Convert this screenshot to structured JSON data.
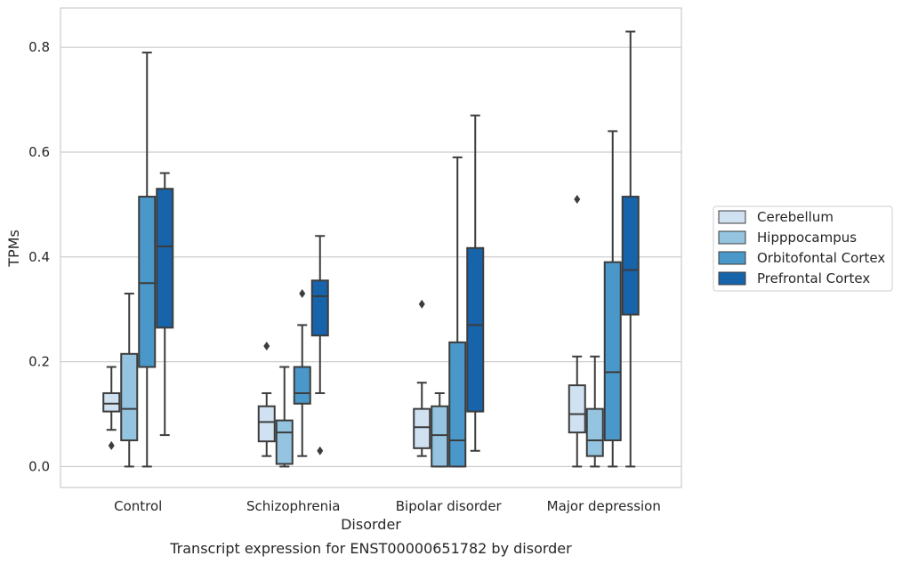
{
  "caption": "Transcript expression for ENST00000651782 by disorder",
  "chart_data": {
    "type": "boxplot",
    "xlabel": "Disorder",
    "ylabel": "TPMs",
    "ylim": [
      -0.04,
      0.875
    ],
    "yticks": [
      0.0,
      0.2,
      0.4,
      0.6,
      0.8
    ],
    "ytick_labels": [
      "0.0",
      "0.2",
      "0.4",
      "0.6",
      "0.8"
    ],
    "grid": "horizontal",
    "legend_position": "right",
    "categories": [
      "Control",
      "Schizophrenia",
      "Bipolar disorder",
      "Major depression"
    ],
    "series": [
      {
        "name": "Cerebellum",
        "color": "#d0e1f2",
        "boxes": [
          {
            "min": 0.07,
            "q1": 0.105,
            "median": 0.12,
            "q3": 0.14,
            "max": 0.19,
            "outliers": [
              0.04
            ]
          },
          {
            "min": 0.02,
            "q1": 0.048,
            "median": 0.085,
            "q3": 0.115,
            "max": 0.14,
            "outliers": [
              0.23
            ]
          },
          {
            "min": 0.02,
            "q1": 0.035,
            "median": 0.075,
            "q3": 0.11,
            "max": 0.16,
            "outliers": [
              0.31
            ]
          },
          {
            "min": 0.0,
            "q1": 0.065,
            "median": 0.1,
            "q3": 0.155,
            "max": 0.21,
            "outliers": [
              0.51
            ]
          }
        ]
      },
      {
        "name": "Hipppocampus",
        "color": "#94c4df",
        "boxes": [
          {
            "min": 0.0,
            "q1": 0.05,
            "median": 0.11,
            "q3": 0.215,
            "max": 0.33,
            "outliers": []
          },
          {
            "min": 0.0,
            "q1": 0.005,
            "median": 0.065,
            "q3": 0.088,
            "max": 0.19,
            "outliers": []
          },
          {
            "min": 0.0,
            "q1": 0.0,
            "median": 0.06,
            "q3": 0.115,
            "max": 0.14,
            "outliers": []
          },
          {
            "min": 0.0,
            "q1": 0.02,
            "median": 0.05,
            "q3": 0.11,
            "max": 0.21,
            "outliers": []
          }
        ]
      },
      {
        "name": "Orbitofontal Cortex",
        "color": "#4a98c9",
        "boxes": [
          {
            "min": 0.0,
            "q1": 0.19,
            "median": 0.35,
            "q3": 0.515,
            "max": 0.79,
            "outliers": []
          },
          {
            "min": 0.02,
            "q1": 0.12,
            "median": 0.14,
            "q3": 0.19,
            "max": 0.27,
            "outliers": [
              0.33
            ]
          },
          {
            "min": 0.0,
            "q1": 0.0,
            "median": 0.05,
            "q3": 0.237,
            "max": 0.59,
            "outliers": []
          },
          {
            "min": 0.0,
            "q1": 0.05,
            "median": 0.18,
            "q3": 0.39,
            "max": 0.64,
            "outliers": []
          }
        ]
      },
      {
        "name": "Prefrontal Cortex",
        "color": "#1764ab",
        "boxes": [
          {
            "min": 0.06,
            "q1": 0.265,
            "median": 0.42,
            "q3": 0.53,
            "max": 0.56,
            "outliers": []
          },
          {
            "min": 0.14,
            "q1": 0.25,
            "median": 0.325,
            "q3": 0.355,
            "max": 0.44,
            "outliers": [
              0.03
            ]
          },
          {
            "min": 0.03,
            "q1": 0.105,
            "median": 0.27,
            "q3": 0.417,
            "max": 0.67,
            "outliers": []
          },
          {
            "min": 0.0,
            "q1": 0.29,
            "median": 0.375,
            "q3": 0.515,
            "max": 0.83,
            "outliers": []
          }
        ]
      }
    ]
  }
}
